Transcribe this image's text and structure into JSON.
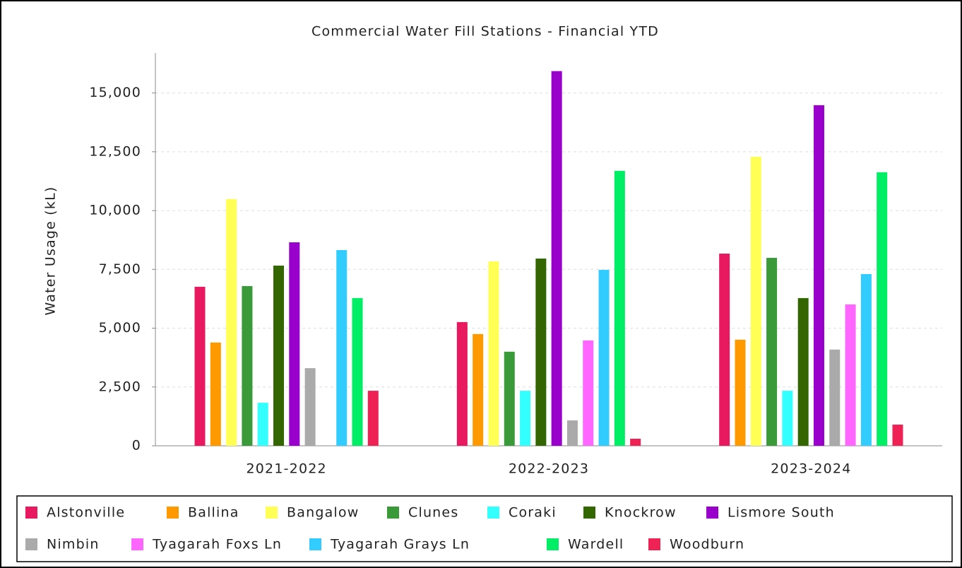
{
  "chart_data": {
    "type": "bar",
    "title": "Commercial Water Fill Stations - Financial YTD",
    "y_label": "Water Usage (kL)",
    "categories": [
      "2021-2022",
      "2022-2023",
      "2023-2024"
    ],
    "series": [
      {
        "name": "Alstonville",
        "color": "#e8195e",
        "values": [
          6760,
          5260,
          8170
        ]
      },
      {
        "name": "Ballina",
        "color": "#ff9900",
        "values": [
          4390,
          4750,
          4510
        ]
      },
      {
        "name": "Bangalow",
        "color": "#ffff55",
        "values": [
          10490,
          7840,
          12290
        ]
      },
      {
        "name": "Clunes",
        "color": "#3a9a3a",
        "values": [
          6790,
          4000,
          7990
        ]
      },
      {
        "name": "Coraki",
        "color": "#33ffff",
        "values": [
          1830,
          2340,
          2340
        ]
      },
      {
        "name": "Knockrow",
        "color": "#336600",
        "values": [
          7660,
          7960,
          6280
        ]
      },
      {
        "name": "Lismore South",
        "color": "#9900cc",
        "values": [
          8650,
          15930,
          14480
        ]
      },
      {
        "name": "Nimbin",
        "color": "#aaaaaa",
        "values": [
          3300,
          1080,
          4090
        ]
      },
      {
        "name": "Tyagarah Foxs Ln",
        "color": "#ff66ff",
        "values": [
          0,
          4480,
          6010
        ]
      },
      {
        "name": "Tyagarah Grays Ln",
        "color": "#33ccff",
        "values": [
          8320,
          7480,
          7300
        ]
      },
      {
        "name": "Wardell",
        "color": "#00ee66",
        "values": [
          6280,
          11690,
          11630
        ]
      },
      {
        "name": "Woodburn",
        "color": "#ee2255",
        "values": [
          2340,
          300,
          900
        ]
      }
    ],
    "ylim": [
      0,
      16700
    ],
    "yticks": [
      0,
      {
        "value": 2500,
        "label": "2,500"
      },
      {
        "value": 5000,
        "label": "5,000"
      },
      {
        "value": 7500,
        "label": "7,500"
      },
      {
        "value": 10000,
        "label": "10,000"
      },
      {
        "value": 12500,
        "label": "12,500"
      },
      {
        "value": 15000,
        "label": "15,000"
      }
    ],
    "grid": true
  }
}
